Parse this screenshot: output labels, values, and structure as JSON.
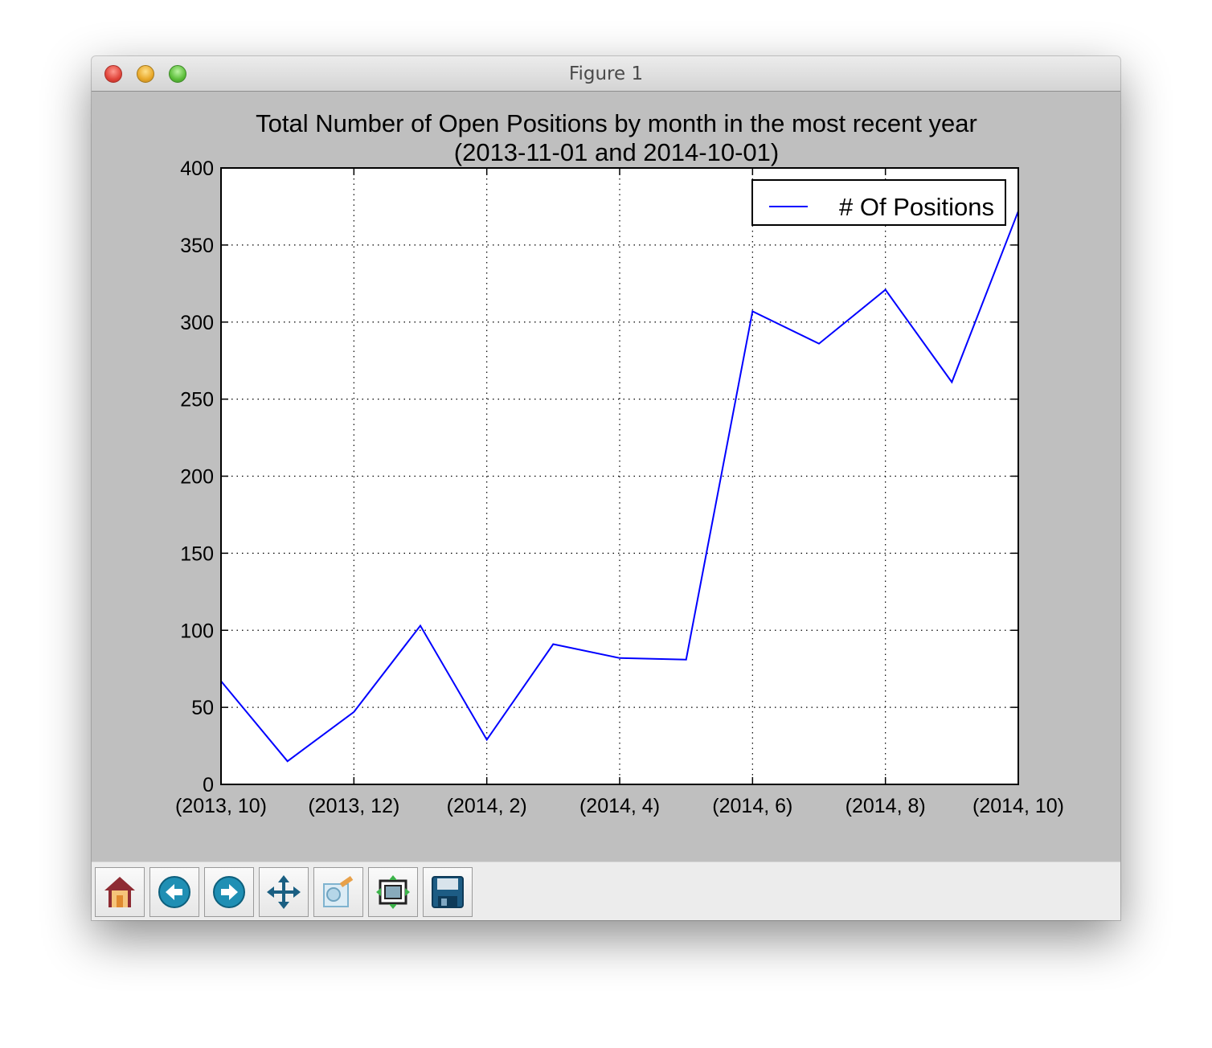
{
  "window": {
    "title": "Figure 1"
  },
  "toolbar": {
    "buttons": [
      {
        "name": "home-button",
        "icon": "home-icon"
      },
      {
        "name": "back-button",
        "icon": "back-arrow-icon"
      },
      {
        "name": "forward-button",
        "icon": "forward-arrow-icon"
      },
      {
        "name": "pan-button",
        "icon": "move-arrows-icon"
      },
      {
        "name": "zoom-button",
        "icon": "zoom-rect-icon"
      },
      {
        "name": "subplots-button",
        "icon": "subplots-config-icon"
      },
      {
        "name": "save-button",
        "icon": "floppy-disk-icon"
      }
    ]
  },
  "chart_data": {
    "type": "line",
    "title": "Total Number of Open Positions by month in the most recent year",
    "subtitle": "(2013-11-01 and 2014-10-01)",
    "xlabel": "",
    "ylabel": "",
    "x_tick_labels": [
      "(2013, 10)",
      "(2013, 12)",
      "(2014, 2)",
      "(2014, 4)",
      "(2014, 6)",
      "(2014, 8)",
      "(2014, 10)"
    ],
    "x_tick_indices": [
      0,
      2,
      4,
      6,
      8,
      10,
      12
    ],
    "xlim": [
      0,
      12
    ],
    "ylim": [
      0,
      400
    ],
    "yticks": [
      0,
      50,
      100,
      150,
      200,
      250,
      300,
      350,
      400
    ],
    "grid": true,
    "grid_style": "dotted",
    "legend_position": "top-right",
    "series": [
      {
        "name": "# Of Positions",
        "color": "#0000ff",
        "x_months": [
          "(2013, 10)",
          "(2013, 11)",
          "(2013, 12)",
          "(2014, 1)",
          "(2014, 2)",
          "(2014, 3)",
          "(2014, 4)",
          "(2014, 5)",
          "(2014, 6)",
          "(2014, 7)",
          "(2014, 8)",
          "(2014, 9)",
          "(2014, 10)"
        ],
        "values": [
          67,
          15,
          47,
          103,
          29,
          91,
          82,
          81,
          307,
          286,
          321,
          261,
          372
        ]
      }
    ]
  }
}
